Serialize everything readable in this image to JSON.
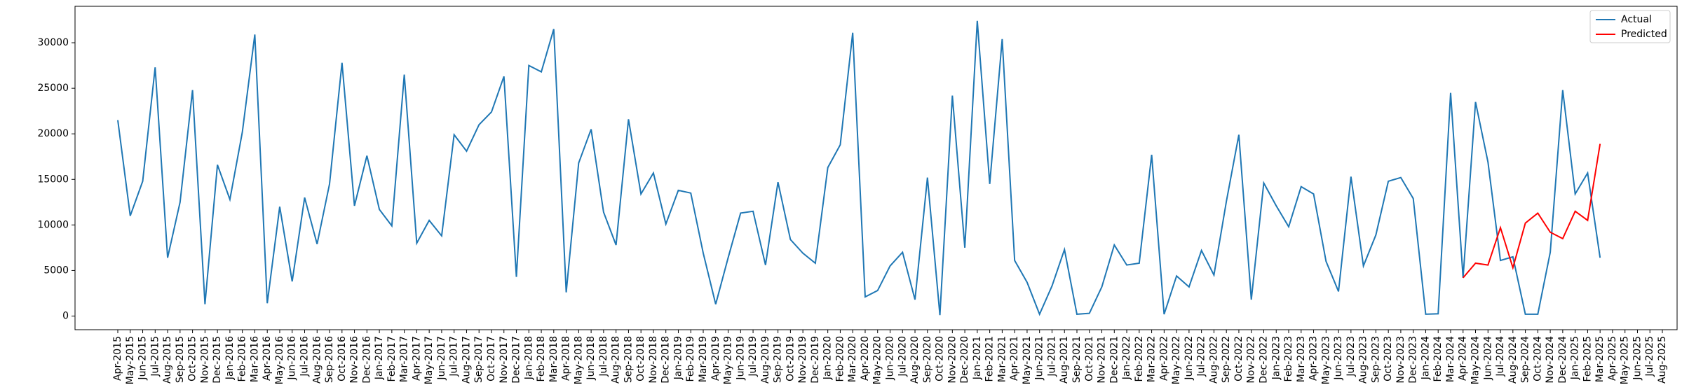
{
  "chart_data": {
    "type": "line",
    "categories": [
      "Apr-2015",
      "May-2015",
      "Jun-2015",
      "Jul-2015",
      "Aug-2015",
      "Sep-2015",
      "Oct-2015",
      "Nov-2015",
      "Dec-2015",
      "Jan-2016",
      "Feb-2016",
      "Mar-2016",
      "Apr-2016",
      "May-2016",
      "Jun-2016",
      "Jul-2016",
      "Aug-2016",
      "Sep-2016",
      "Oct-2016",
      "Nov-2016",
      "Dec-2016",
      "Jan-2017",
      "Feb-2017",
      "Mar-2017",
      "Apr-2017",
      "May-2017",
      "Jun-2017",
      "Jul-2017",
      "Aug-2017",
      "Sep-2017",
      "Oct-2017",
      "Nov-2017",
      "Dec-2017",
      "Jan-2018",
      "Feb-2018",
      "Mar-2018",
      "Apr-2018",
      "May-2018",
      "Jun-2018",
      "Jul-2018",
      "Aug-2018",
      "Sep-2018",
      "Oct-2018",
      "Nov-2018",
      "Dec-2018",
      "Jan-2019",
      "Feb-2019",
      "Mar-2019",
      "Apr-2019",
      "May-2019",
      "Jun-2019",
      "Jul-2019",
      "Aug-2019",
      "Sep-2019",
      "Oct-2019",
      "Nov-2019",
      "Dec-2019",
      "Jan-2020",
      "Feb-2020",
      "Mar-2020",
      "Apr-2020",
      "May-2020",
      "Jun-2020",
      "Jul-2020",
      "Aug-2020",
      "Sep-2020",
      "Oct-2020",
      "Nov-2020",
      "Dec-2020",
      "Jan-2021",
      "Feb-2021",
      "Mar-2021",
      "Apr-2021",
      "May-2021",
      "Jun-2021",
      "Jul-2021",
      "Aug-2021",
      "Sep-2021",
      "Oct-2021",
      "Nov-2021",
      "Dec-2021",
      "Jan-2022",
      "Feb-2022",
      "Mar-2022",
      "Apr-2022",
      "May-2022",
      "Jun-2022",
      "Jul-2022",
      "Aug-2022",
      "Sep-2022",
      "Oct-2022",
      "Nov-2022",
      "Dec-2022",
      "Jan-2023",
      "Feb-2023",
      "Mar-2023",
      "Apr-2023",
      "May-2023",
      "Jun-2023",
      "Jul-2023",
      "Aug-2023",
      "Sep-2023",
      "Oct-2023",
      "Nov-2023",
      "Dec-2023",
      "Jan-2024",
      "Feb-2024",
      "Mar-2024",
      "Apr-2024",
      "May-2024",
      "Jun-2024",
      "Jul-2024",
      "Aug-2024",
      "Sep-2024",
      "Oct-2024",
      "Nov-2024",
      "Dec-2024",
      "Jan-2025",
      "Feb-2025",
      "Mar-2025",
      "Apr-2025",
      "May-2025",
      "Jun-2025",
      "Jul-2025",
      "Aug-2025"
    ],
    "series": [
      {
        "name": "Actual",
        "color": "#1f77b4",
        "values": [
          21500,
          11000,
          14800,
          27300,
          6400,
          12500,
          24800,
          1300,
          16600,
          12800,
          20200,
          30900,
          1400,
          12000,
          3800,
          13000,
          7900,
          14500,
          27800,
          12100,
          17600,
          11700,
          9900,
          26500,
          8000,
          10500,
          8800,
          19900,
          18100,
          21000,
          22400,
          26300,
          4300,
          27500,
          26800,
          31500,
          2600,
          16800,
          20500,
          11400,
          7800,
          21600,
          13400,
          15700,
          10100,
          13800,
          13500,
          6900,
          1300,
          6400,
          11300,
          11500,
          5600,
          14700,
          8400,
          6900,
          5800,
          16300,
          18800,
          31100,
          2100,
          2800,
          5500,
          7000,
          1800,
          15200,
          100,
          24200,
          7500,
          32400,
          14500,
          30400,
          6100,
          3700,
          200,
          3300,
          7300,
          200,
          300,
          3200,
          7800,
          5600,
          5800,
          17700,
          200,
          4400,
          3200,
          7200,
          4500,
          12600,
          19900,
          1800,
          14600,
          12100,
          9800,
          14200,
          13400,
          6000,
          2700,
          15300,
          5500,
          8900,
          14800,
          15200,
          12900,
          200,
          250,
          24500,
          4200,
          23500,
          16900,
          6100,
          6500,
          200,
          200,
          7000,
          24800,
          13400,
          15700,
          6400,
          null,
          null,
          null,
          null,
          null
        ]
      },
      {
        "name": "Predicted",
        "color": "#ff0000",
        "values": [
          null,
          null,
          null,
          null,
          null,
          null,
          null,
          null,
          null,
          null,
          null,
          null,
          null,
          null,
          null,
          null,
          null,
          null,
          null,
          null,
          null,
          null,
          null,
          null,
          null,
          null,
          null,
          null,
          null,
          null,
          null,
          null,
          null,
          null,
          null,
          null,
          null,
          null,
          null,
          null,
          null,
          null,
          null,
          null,
          null,
          null,
          null,
          null,
          null,
          null,
          null,
          null,
          null,
          null,
          null,
          null,
          null,
          null,
          null,
          null,
          null,
          null,
          null,
          null,
          null,
          null,
          null,
          null,
          null,
          null,
          null,
          null,
          null,
          null,
          null,
          null,
          null,
          null,
          null,
          null,
          null,
          null,
          null,
          null,
          null,
          null,
          null,
          null,
          null,
          null,
          null,
          null,
          null,
          null,
          null,
          null,
          null,
          null,
          null,
          null,
          null,
          null,
          null,
          null,
          null,
          null,
          null,
          null,
          4200,
          5800,
          5600,
          9700,
          5300,
          10200,
          11300,
          9200,
          8500,
          11500,
          10500,
          18900,
          null,
          null,
          null,
          null,
          null
        ]
      }
    ],
    "ylim": [
      -1500,
      34000
    ],
    "yticks": [
      0,
      5000,
      10000,
      15000,
      20000,
      25000,
      30000
    ],
    "legend": "upper right",
    "grid": false
  }
}
